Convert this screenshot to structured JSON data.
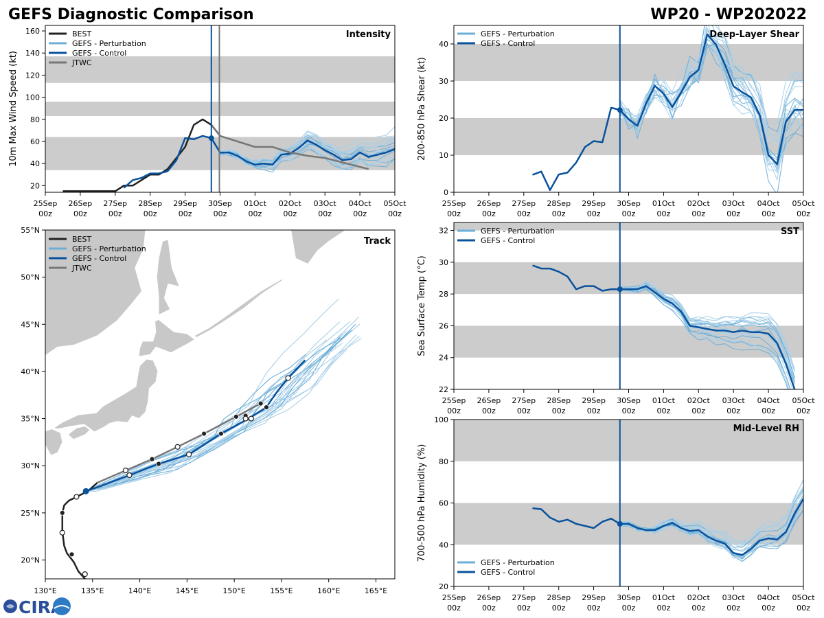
{
  "page": {
    "title": "GEFS Diagnostic Comparison",
    "storm": "WP20 - WP202022",
    "logo_text": "CIRA"
  },
  "colors": {
    "best": "#222222",
    "perturbation": "#6baed6",
    "perturbation_light": "#a9cfe8",
    "control": "#08519c",
    "jtwc": "#777777",
    "band": "#cccccc",
    "land": "#c8c8c8"
  },
  "time_axis": {
    "ticks": [
      "25Sep\n00z",
      "26Sep\n00z",
      "27Sep\n00z",
      "28Sep\n00z",
      "29Sep\n00z",
      "30Sep\n00z",
      "01Oct\n00z",
      "02Oct\n00z",
      "03Oct\n00z",
      "04Oct\n00z",
      "05Oct\n00z"
    ],
    "range_days": [
      0,
      10
    ],
    "current_time_day": 4.75,
    "jtwc_time_day": 4.98
  },
  "chart_data": [
    {
      "id": "intensity",
      "type": "line",
      "title": "Intensity",
      "ylabel": "10m Max Wind Speed (kt)",
      "ylim": [
        14,
        165
      ],
      "yticks": [
        20,
        40,
        60,
        80,
        100,
        120,
        140,
        160
      ],
      "bands": [
        [
          34,
          64
        ],
        [
          83,
          96
        ],
        [
          113,
          137
        ]
      ],
      "legend": [
        "BEST",
        "GEFS - Perturbation",
        "GEFS - Control",
        "JTWC"
      ],
      "legend_position": "top-left",
      "series": [
        {
          "name": "BEST",
          "x": [
            0.5,
            2.0,
            2.25,
            2.5,
            2.75,
            3.0,
            3.25,
            3.5,
            3.75,
            4.0,
            4.25,
            4.5,
            4.75,
            5.0
          ],
          "y": [
            15,
            15,
            20,
            20,
            25,
            30,
            30,
            35,
            45,
            55,
            75,
            80,
            75,
            65
          ]
        },
        {
          "name": "GEFS - Control",
          "x": [
            2.25,
            2.5,
            2.75,
            3.0,
            3.25,
            3.5,
            3.75,
            4.0,
            4.25,
            4.5,
            4.75,
            5.0,
            5.25,
            5.5,
            5.75,
            6.0,
            6.25,
            6.5,
            6.75,
            7.0,
            7.25,
            7.5,
            7.75,
            8.0,
            8.25,
            8.5,
            8.75,
            9.0,
            9.25,
            9.5,
            9.75,
            10.0
          ],
          "y": [
            18,
            25,
            27,
            31,
            31,
            33,
            43,
            63,
            62,
            65,
            63,
            50,
            50,
            47,
            42,
            39,
            40,
            39,
            48,
            49,
            54,
            61,
            57,
            52,
            48,
            43,
            44,
            50,
            46,
            48,
            50,
            53
          ]
        },
        {
          "name": "JTWC",
          "x": [
            4.75,
            5.0,
            5.5,
            6.0,
            6.5,
            7.0,
            7.5,
            8.0,
            8.5,
            9.0,
            9.25
          ],
          "y": [
            75,
            65,
            60,
            55,
            55,
            50,
            47,
            45,
            41,
            37,
            35
          ]
        }
      ]
    },
    {
      "id": "shear",
      "type": "line",
      "title": "Deep-Layer Shear",
      "ylabel": "200-850 hPa Shear (kt)",
      "ylim": [
        0,
        45
      ],
      "yticks": [
        0,
        10,
        20,
        30,
        40
      ],
      "bands": [
        [
          10,
          20
        ],
        [
          30,
          40
        ]
      ],
      "legend": [
        "GEFS - Perturbation",
        "GEFS - Control"
      ],
      "legend_position": "top-left",
      "series": [
        {
          "name": "GEFS - Control",
          "x": [
            2.25,
            2.5,
            2.75,
            3.0,
            3.25,
            3.5,
            3.75,
            4.0,
            4.25,
            4.5,
            4.75,
            5.0,
            5.25,
            5.5,
            5.75,
            6.0,
            6.25,
            6.5,
            6.75,
            7.0,
            7.25,
            7.5,
            7.75,
            8.0,
            8.25,
            8.5,
            8.75,
            9.0,
            9.25,
            9.5,
            9.75,
            10.0
          ],
          "y": [
            4.7,
            5.6,
            0.6,
            4.8,
            5.3,
            8.0,
            12.2,
            13.8,
            13.5,
            22.8,
            22.2,
            19.7,
            17.9,
            24.0,
            28.7,
            26.6,
            23.0,
            26.9,
            31.1,
            33.0,
            42.6,
            39.8,
            34.5,
            28.6,
            27.0,
            25.6,
            20.8,
            10.0,
            7.6,
            19.0,
            22.2,
            22.2
          ]
        }
      ]
    },
    {
      "id": "sst",
      "type": "line",
      "title": "SST",
      "ylabel": "Sea Surface Temp (°C)",
      "ylim": [
        22,
        32.5
      ],
      "yticks": [
        22,
        24,
        26,
        28,
        30,
        32
      ],
      "bands": [
        [
          24,
          26
        ],
        [
          28,
          30
        ],
        [
          32,
          32.5
        ]
      ],
      "legend": [
        "GEFS - Perturbation",
        "GEFS - Control"
      ],
      "legend_position": "top-left",
      "series": [
        {
          "name": "GEFS - Control",
          "x": [
            2.25,
            2.5,
            2.75,
            3.0,
            3.25,
            3.5,
            3.75,
            4.0,
            4.25,
            4.5,
            4.75,
            5.0,
            5.25,
            5.5,
            5.75,
            6.0,
            6.25,
            6.5,
            6.75,
            7.0,
            7.25,
            7.5,
            7.75,
            8.0,
            8.25,
            8.5,
            8.75,
            9.0,
            9.25,
            9.5,
            9.75
          ],
          "y": [
            29.8,
            29.6,
            29.6,
            29.4,
            29.1,
            28.3,
            28.5,
            28.5,
            28.2,
            28.3,
            28.3,
            28.3,
            28.3,
            28.5,
            28.1,
            27.7,
            27.4,
            26.9,
            26.0,
            25.9,
            25.8,
            25.7,
            25.7,
            25.6,
            25.7,
            25.6,
            25.6,
            25.5,
            24.9,
            23.6,
            22.0
          ]
        }
      ]
    },
    {
      "id": "rh",
      "type": "line",
      "title": "Mid-Level RH",
      "ylabel": "700-500 hPa Humidity (%)",
      "ylim": [
        20,
        100
      ],
      "yticks": [
        20,
        40,
        60,
        80,
        100
      ],
      "bands": [
        [
          40,
          60
        ],
        [
          80,
          100
        ]
      ],
      "legend": [
        "GEFS - Perturbation",
        "GEFS - Control"
      ],
      "legend_position": "bottom-left",
      "series": [
        {
          "name": "GEFS - Control",
          "x": [
            2.25,
            2.5,
            2.75,
            3.0,
            3.25,
            3.5,
            3.75,
            4.0,
            4.25,
            4.5,
            4.75,
            5.0,
            5.25,
            5.5,
            5.75,
            6.0,
            6.25,
            6.5,
            6.75,
            7.0,
            7.25,
            7.5,
            7.75,
            8.0,
            8.25,
            8.5,
            8.75,
            9.0,
            9.25,
            9.5,
            9.75,
            10.0
          ],
          "y": [
            57.5,
            57.0,
            53.0,
            51.0,
            52.0,
            50.0,
            49.0,
            48.0,
            51.0,
            52.5,
            50.0,
            50.0,
            48.0,
            47.0,
            47.0,
            49.0,
            50.5,
            48.0,
            46.5,
            47.0,
            44.0,
            42.0,
            40.5,
            36.0,
            35.0,
            38.0,
            42.0,
            43.0,
            42.5,
            46.0,
            55.0,
            62.0
          ]
        }
      ]
    },
    {
      "id": "track",
      "type": "scatter",
      "title": "Track",
      "xlabel_ticks": [
        "130°E",
        "135°E",
        "140°E",
        "145°E",
        "150°E",
        "155°E",
        "160°E",
        "165°E"
      ],
      "ylabel_ticks": [
        "20°N",
        "25°N",
        "30°N",
        "35°N",
        "40°N",
        "45°N",
        "50°N",
        "55°N"
      ],
      "lon_range": [
        130,
        167
      ],
      "lat_range": [
        18,
        55
      ],
      "legend": [
        "BEST",
        "GEFS - Perturbation",
        "GEFS - Control",
        "JTWC"
      ],
      "legend_position": "top-left",
      "series": [
        {
          "name": "BEST",
          "lon": [
            134.2,
            133.5,
            133.0,
            132.3,
            132.0,
            131.8,
            131.8,
            132.0,
            132.5,
            133.3,
            134.5,
            135.5
          ],
          "lat": [
            18.0,
            18.8,
            19.8,
            20.7,
            21.5,
            23.0,
            25.0,
            25.8,
            26.3,
            26.7,
            27.3,
            28.2
          ]
        },
        {
          "name": "GEFS - Control",
          "lon": [
            134.3,
            136.0,
            138.9,
            142.0,
            145.2,
            148.6,
            151.5,
            153.4,
            154.5,
            155.7,
            157.5
          ],
          "lat": [
            27.3,
            27.9,
            29.0,
            30.2,
            31.2,
            33.4,
            35.0,
            36.2,
            37.8,
            39.3,
            41.2
          ]
        },
        {
          "name": "JTWC",
          "lon": [
            135.5,
            138.5,
            141.3,
            144.0,
            146.8,
            150.2,
            152.8
          ],
          "lat": [
            28.2,
            29.5,
            30.7,
            32.0,
            33.4,
            35.2,
            36.6
          ]
        }
      ],
      "markers": {
        "filled": [
          [
            132.8,
            20.6
          ],
          [
            131.8,
            25.0
          ],
          [
            142.0,
            30.2
          ],
          [
            148.6,
            33.4
          ],
          [
            153.4,
            36.2
          ],
          [
            141.3,
            30.7
          ],
          [
            146.8,
            33.4
          ],
          [
            150.2,
            35.2
          ],
          [
            151.2,
            35.3
          ],
          [
            152.8,
            36.6
          ]
        ],
        "open": [
          [
            134.2,
            18.5
          ],
          [
            131.8,
            22.9
          ],
          [
            133.3,
            26.7
          ],
          [
            138.9,
            29.0
          ],
          [
            145.2,
            31.2
          ],
          [
            151.2,
            35.0
          ],
          [
            155.7,
            39.3
          ],
          [
            138.5,
            29.5
          ],
          [
            144.0,
            32.0
          ],
          [
            151.8,
            35.0
          ]
        ],
        "current": [
          [
            134.3,
            27.3
          ]
        ]
      }
    }
  ]
}
